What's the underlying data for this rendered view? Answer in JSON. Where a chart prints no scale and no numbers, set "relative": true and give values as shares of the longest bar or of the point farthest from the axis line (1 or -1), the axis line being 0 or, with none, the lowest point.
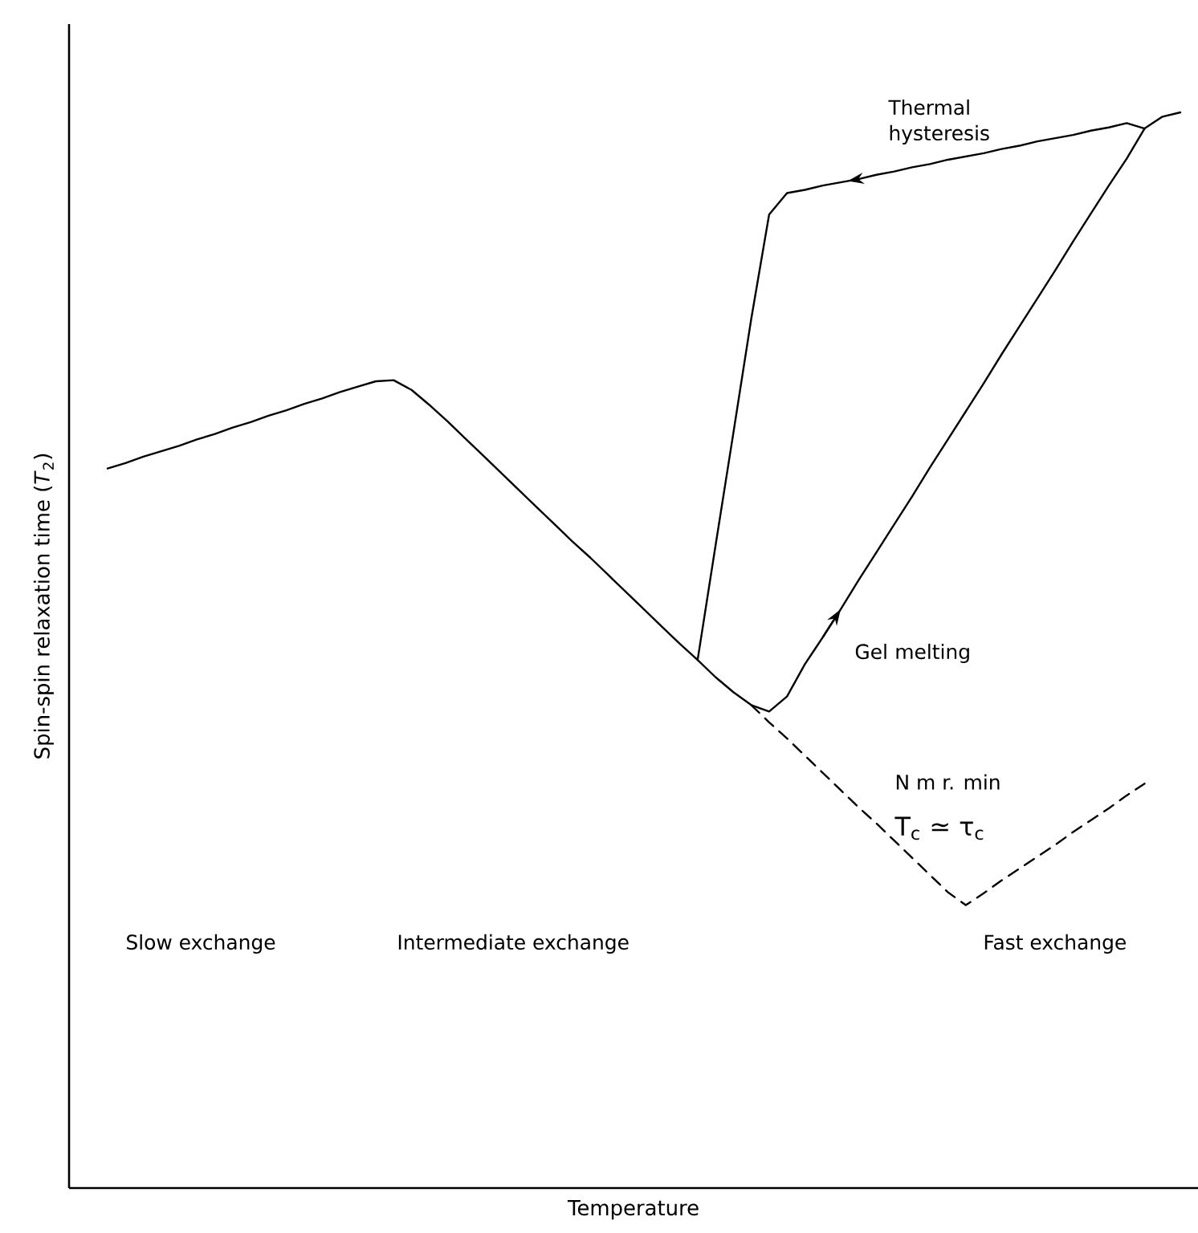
{
  "chart_data": {
    "type": "line",
    "relative": true,
    "xlabel": "Temperature",
    "ylabel": "Spin-spin relaxation time (*T*$_{2}$)",
    "categories": [
      null,
      null,
      null,
      null,
      null,
      null,
      null,
      null,
      null,
      null,
      null,
      null,
      null,
      null,
      null,
      null,
      null,
      null,
      null,
      null,
      null,
      null,
      null,
      null,
      null,
      null,
      null,
      null,
      null,
      null,
      null,
      null,
      null,
      null,
      null,
      null,
      null,
      null,
      null,
      null,
      null,
      null,
      null,
      null,
      null,
      null,
      null,
      null,
      null,
      null,
      null,
      null,
      null,
      null,
      null,
      null,
      null,
      null,
      null,
      null,
      null
    ],
    "series": [
      {
        "color": "#000000",
        "line_style": "solid",
        "values": [
          0.669,
          0.674,
          0.68,
          0.685,
          0.69,
          0.696,
          0.701,
          0.707,
          0.712,
          0.718,
          0.723,
          0.729,
          0.734,
          0.74,
          0.745,
          0.75,
          0.751,
          0.742,
          0.728,
          0.713,
          0.697,
          0.681,
          0.665,
          0.649,
          0.633,
          0.617,
          0.601,
          0.586,
          0.57,
          0.554,
          0.538,
          0.522,
          0.506,
          0.491,
          0.475,
          0.461,
          0.449,
          0.443,
          0.457,
          0.487,
          0.512,
          0.538,
          0.565,
          0.591,
          0.617,
          0.643,
          0.67,
          0.696,
          0.722,
          0.748,
          0.775,
          0.801,
          0.827,
          0.853,
          0.88,
          0.906,
          0.932,
          0.957,
          0.985,
          0.996,
          1.0
        ]
      },
      {
        "color": "#000000",
        "line_style": "solid",
        "values": [
          null,
          null,
          null,
          null,
          null,
          null,
          null,
          null,
          null,
          null,
          null,
          null,
          null,
          null,
          null,
          null,
          null,
          null,
          null,
          null,
          null,
          null,
          null,
          null,
          null,
          null,
          null,
          null,
          null,
          null,
          null,
          null,
          null,
          0.491,
          0.597,
          0.702,
          0.808,
          0.905,
          0.925,
          0.928,
          0.932,
          0.935,
          0.938,
          0.942,
          0.945,
          0.949,
          0.952,
          0.956,
          0.959,
          0.962,
          0.966,
          0.969,
          0.973,
          0.976,
          0.979,
          0.983,
          0.986,
          0.99,
          0.985,
          null,
          null
        ]
      },
      {
        "color": "#000000",
        "line_style": "dashed",
        "values": [
          null,
          null,
          null,
          null,
          null,
          null,
          null,
          null,
          null,
          null,
          null,
          null,
          null,
          null,
          null,
          null,
          null,
          null,
          null,
          null,
          null,
          null,
          null,
          null,
          null,
          null,
          null,
          null,
          null,
          null,
          null,
          null,
          null,
          null,
          null,
          null,
          0.449,
          0.433,
          0.418,
          0.402,
          0.386,
          0.37,
          0.354,
          0.339,
          0.323,
          0.307,
          0.291,
          0.275,
          0.263,
          0.274,
          0.286,
          0.297,
          0.308,
          0.319,
          0.331,
          0.342,
          0.353,
          0.365,
          0.376,
          null,
          null
        ]
      }
    ],
    "annotations": [
      "Thermal hysteresis",
      "Gel melting",
      "N m r. min",
      "T$_{c}$ ≃ τ$_{c}$",
      "Slow exchange",
      "Intermediate exchange",
      "Fast exchange"
    ]
  }
}
